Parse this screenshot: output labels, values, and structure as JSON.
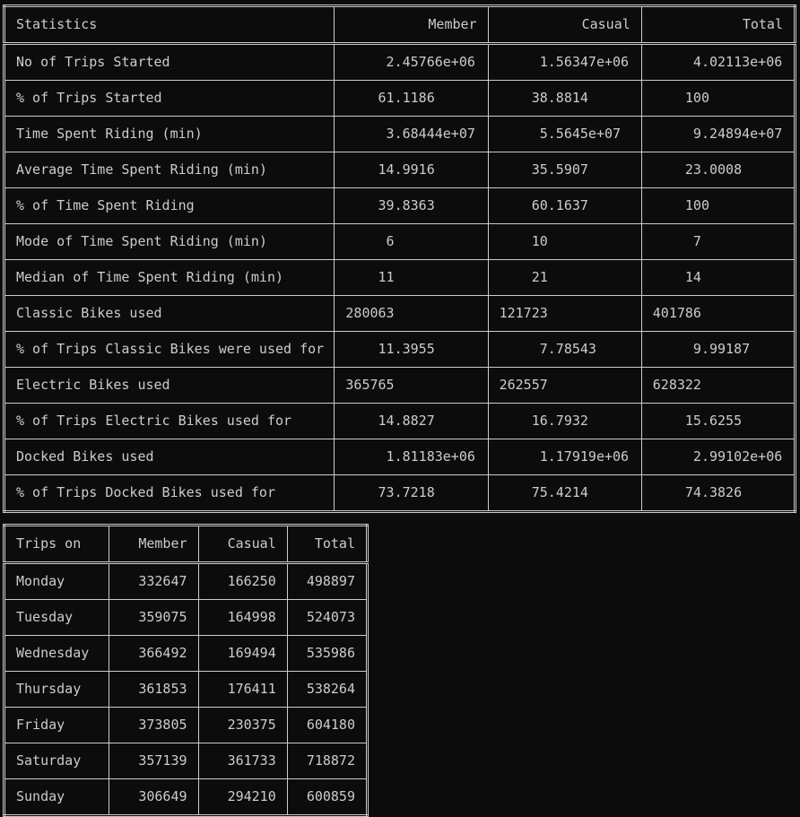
{
  "stats_table": {
    "headers": [
      "Statistics",
      "Member",
      "Casual",
      "Total"
    ],
    "rows": [
      [
        "No of Trips Started",
        "     2.45766e+06",
        "     1.56347e+06",
        "     4.02113e+06"
      ],
      [
        "% of Trips Started",
        "    61.1186",
        "    38.8814",
        "    100"
      ],
      [
        "Time Spent Riding (min)",
        "     3.68444e+07",
        "     5.5645e+07",
        "     9.24894e+07"
      ],
      [
        "Average Time Spent Riding (min)",
        "    14.9916",
        "    35.5907",
        "    23.0008"
      ],
      [
        "% of Time Spent Riding",
        "    39.8363",
        "    60.1637",
        "    100"
      ],
      [
        "Mode of Time Spent Riding (min)",
        "     6",
        "    10",
        "     7"
      ],
      [
        "Median of Time Spent Riding (min)",
        "    11",
        "    21",
        "    14"
      ],
      [
        "Classic Bikes used",
        "280063",
        "121723",
        "401786"
      ],
      [
        "% of Trips Classic Bikes were used for",
        "    11.3955",
        "     7.78543",
        "     9.99187"
      ],
      [
        "Electric Bikes used",
        "365765",
        "262557",
        "628322"
      ],
      [
        "% of Trips Electric Bikes used for",
        "    14.8827",
        "    16.7932",
        "    15.6255"
      ],
      [
        "Docked Bikes used",
        "     1.81183e+06",
        "     1.17919e+06",
        "     2.99102e+06"
      ],
      [
        "% of Trips Docked Bikes used for",
        "    73.7218",
        "    75.4214",
        "    74.3826"
      ]
    ]
  },
  "days_table": {
    "headers": [
      "Trips on",
      "Member",
      "Casual",
      "Total"
    ],
    "rows": [
      [
        "Monday",
        "332647",
        "166250",
        "498897"
      ],
      [
        "Tuesday",
        "359075",
        "164998",
        "524073"
      ],
      [
        "Wednesday",
        "366492",
        "169494",
        "535986"
      ],
      [
        "Thursday",
        "361853",
        "176411",
        "538264"
      ],
      [
        "Friday",
        "373805",
        "230375",
        "604180"
      ],
      [
        "Saturday",
        "357139",
        "361733",
        "718872"
      ],
      [
        "Sunday",
        "306649",
        "294210",
        "600859"
      ]
    ]
  }
}
